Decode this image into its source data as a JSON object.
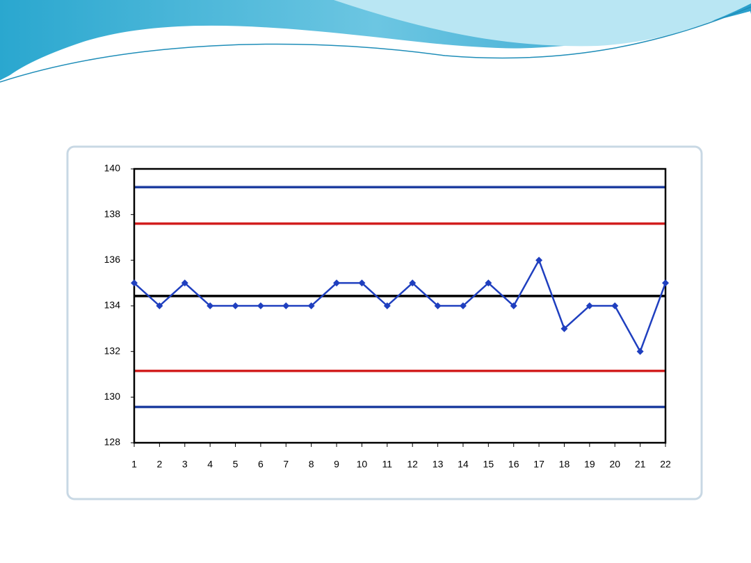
{
  "chart_data": {
    "type": "line",
    "x": [
      1,
      2,
      3,
      4,
      5,
      6,
      7,
      8,
      9,
      10,
      11,
      12,
      13,
      14,
      15,
      16,
      17,
      18,
      19,
      20,
      21,
      22
    ],
    "values": [
      135,
      134,
      135,
      134,
      134,
      134,
      134,
      134,
      135,
      135,
      134,
      135,
      134,
      134,
      135,
      134,
      136,
      133,
      134,
      134,
      132,
      135
    ],
    "color": "#1f3fbf",
    "xlim": [
      1,
      22
    ],
    "xticks": [
      1,
      2,
      3,
      4,
      5,
      6,
      7,
      8,
      9,
      10,
      11,
      12,
      13,
      14,
      15,
      16,
      17,
      18,
      19,
      20,
      21,
      22
    ],
    "ylim": [
      128,
      140
    ],
    "yticks": [
      128,
      130,
      132,
      134,
      136,
      138,
      140
    ],
    "reference_lines": [
      {
        "value": 139.2,
        "color": "#1f3fa0"
      },
      {
        "value": 137.6,
        "color": "#d21f1f"
      },
      {
        "value": 134.43,
        "color": "#000000"
      },
      {
        "value": 131.15,
        "color": "#d21f1f"
      },
      {
        "value": 129.57,
        "color": "#1f3fa0"
      }
    ]
  }
}
